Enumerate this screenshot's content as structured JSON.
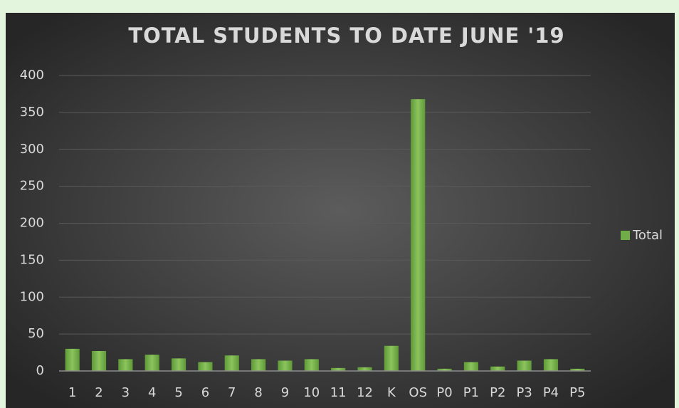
{
  "chart_data": {
    "type": "bar",
    "title": "TOTAL STUDENTS TO DATE JUNE '19",
    "categories": [
      "1",
      "2",
      "3",
      "4",
      "5",
      "6",
      "7",
      "8",
      "9",
      "10",
      "11",
      "12",
      "K",
      "OS",
      "P0",
      "P1",
      "P2",
      "P3",
      "P4",
      "P5"
    ],
    "series": [
      {
        "name": "Total",
        "color": "#70ad47",
        "values": [
          30,
          27,
          16,
          22,
          17,
          12,
          21,
          16,
          14,
          16,
          4,
          5,
          34,
          368,
          3,
          12,
          6,
          14,
          16,
          3
        ]
      }
    ],
    "ylim": [
      0,
      400
    ],
    "yticks": [
      0,
      50,
      100,
      150,
      200,
      250,
      300,
      350,
      400
    ],
    "grid": true,
    "legend": "right"
  }
}
